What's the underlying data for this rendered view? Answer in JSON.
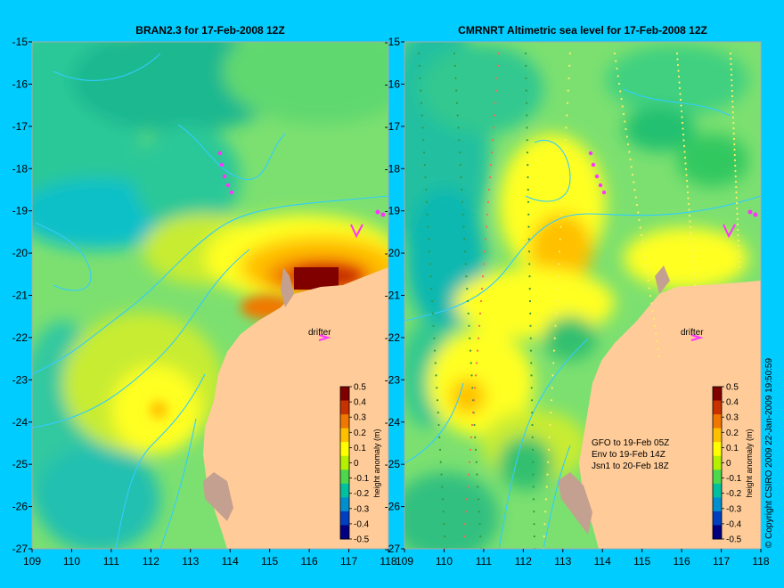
{
  "chart_data": [
    {
      "type": "heatmap",
      "title": "BRAN2.3 for 17-Feb-2008 12Z",
      "x_ticks": [
        "109",
        "110",
        "111",
        "112",
        "113",
        "114",
        "115",
        "116",
        "117",
        "118"
      ],
      "y_ticks": [
        "-15",
        "-16",
        "-17",
        "-18",
        "-19",
        "-20",
        "-21",
        "-22",
        "-23",
        "-24",
        "-25",
        "-26",
        "-27"
      ],
      "xlim": [
        109,
        118
      ],
      "ylim": [
        -27,
        -15
      ],
      "annotations": [
        {
          "text": "drifter",
          "x": 116.4,
          "y": -21.8
        }
      ],
      "colorbar": {
        "label": "height anomaly (m)",
        "ticks": [
          "0.5",
          "0.4",
          "0.3",
          "0.2",
          "0.1",
          "0",
          "-0.1",
          "-0.2",
          "-0.3",
          "-0.4",
          "-0.5"
        ],
        "range": [
          -0.5,
          0.5
        ]
      }
    },
    {
      "type": "heatmap",
      "title": "CMRNRT Altimetric sea level  for 17-Feb-2008 12Z",
      "x_ticks": [
        "109",
        "110",
        "111",
        "112",
        "113",
        "114",
        "115",
        "116",
        "117",
        "118"
      ],
      "y_ticks": [
        "-15",
        "-16",
        "-17",
        "-18",
        "-19",
        "-20",
        "-21",
        "-22",
        "-23",
        "-24",
        "-25",
        "-26",
        "-27"
      ],
      "xlim": [
        109,
        118
      ],
      "ylim": [
        -27,
        -15
      ],
      "annotations": [
        {
          "text": "drifter",
          "x": 116.4,
          "y": -21.8
        },
        {
          "text": "GFO to 19-Feb 05Z",
          "x": 114.3,
          "y": -24.6
        },
        {
          "text": "Env to 19-Feb 14Z",
          "x": 114.3,
          "y": -24.9
        },
        {
          "text": "Jsn1 to 20-Feb 18Z",
          "x": 114.3,
          "y": -25.2
        }
      ],
      "colorbar": {
        "label": "height anomaly (m)",
        "ticks": [
          "0.5",
          "0.4",
          "0.3",
          "0.2",
          "0.1",
          "0",
          "-0.1",
          "-0.2",
          "-0.3",
          "-0.4",
          "-0.5"
        ],
        "range": [
          -0.5,
          0.5
        ]
      }
    }
  ],
  "copyright": "© Copyright CSIRO 2009   22-Jan-2009 19:50:59",
  "colors": {
    "background": "#00ccff",
    "land": "#ffcc99",
    "drifter": "#ff33ff",
    "contour": "#33ccff",
    "colorbar": [
      "#800000",
      "#c83200",
      "#f07800",
      "#ffc000",
      "#ffff00",
      "#b4f000",
      "#4cd84c",
      "#00c0a0",
      "#0090d0",
      "#0040c0",
      "#000080"
    ]
  }
}
